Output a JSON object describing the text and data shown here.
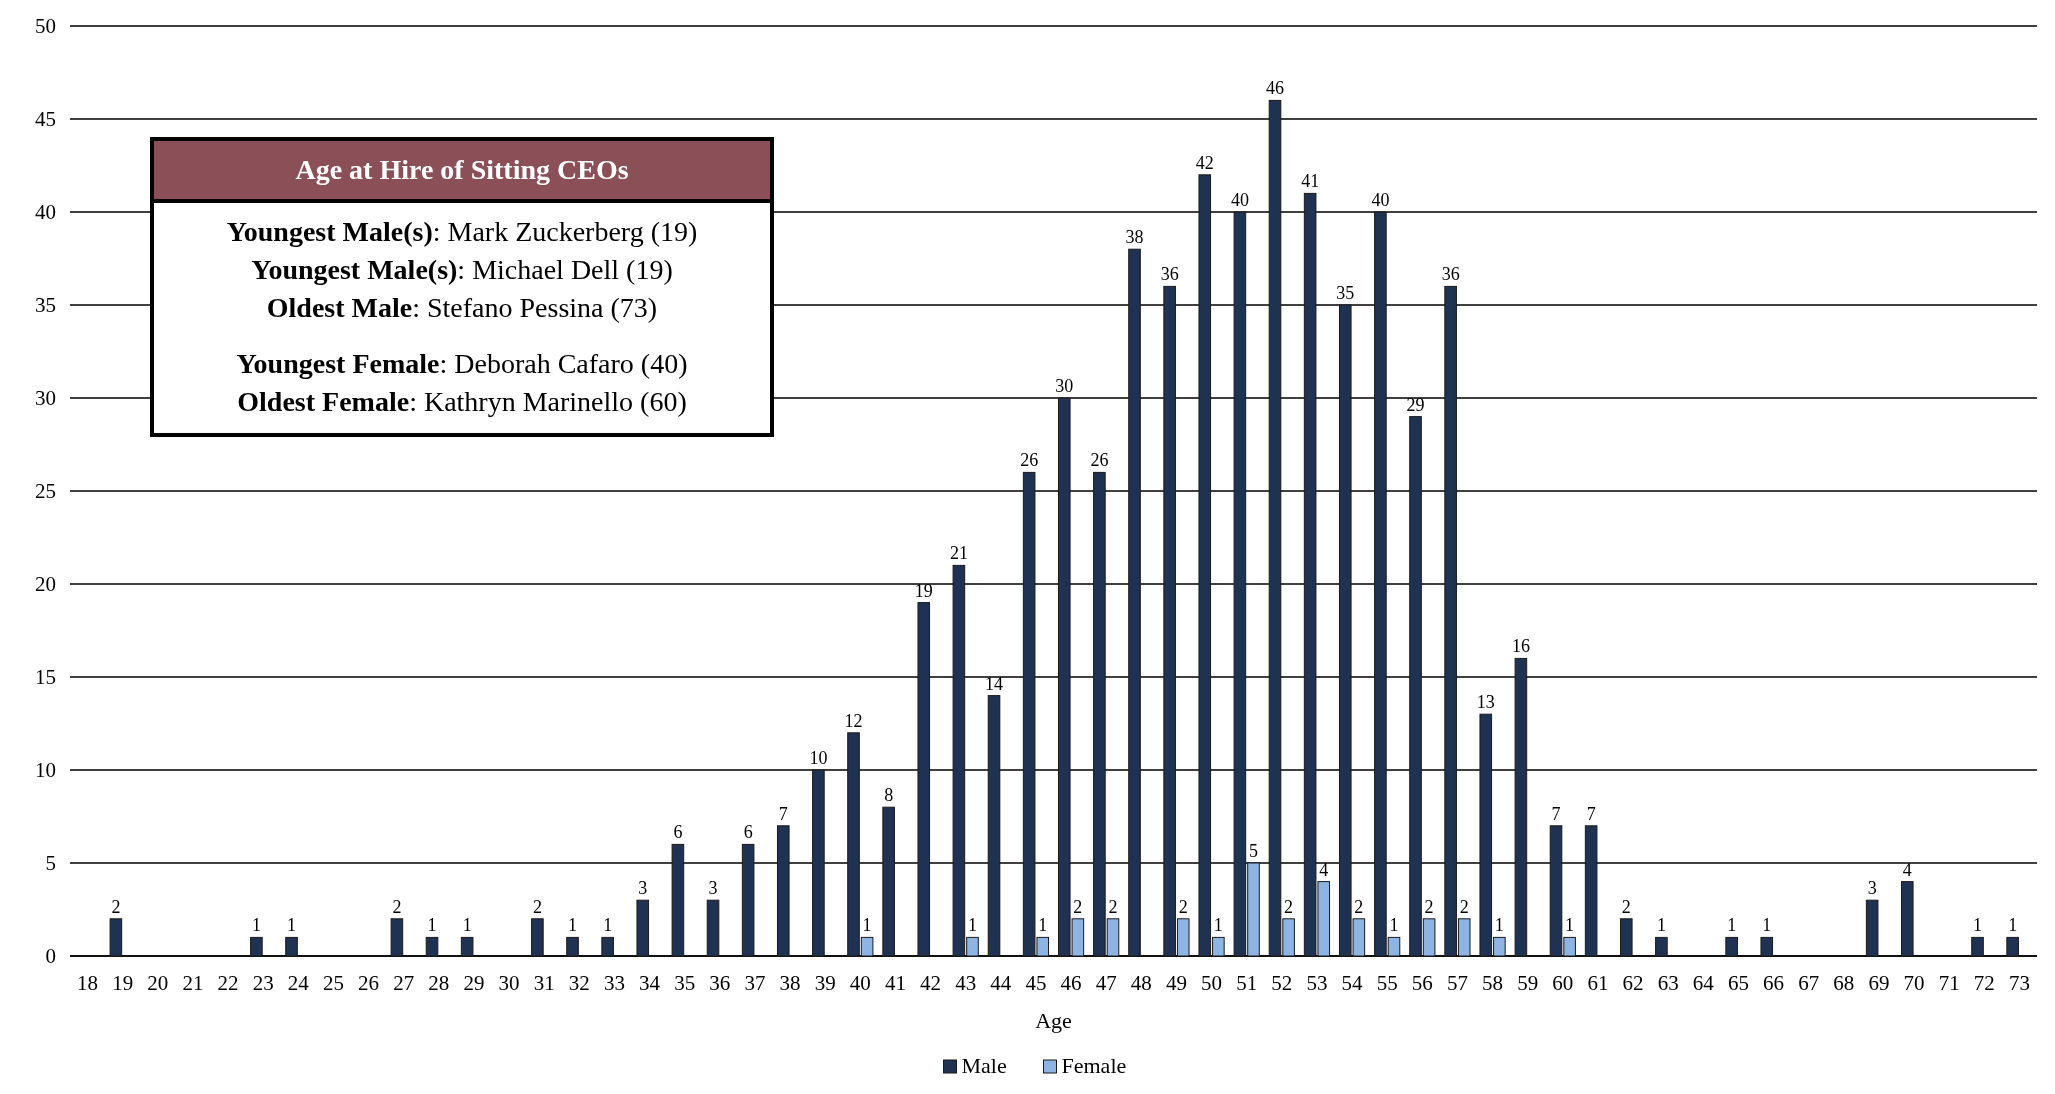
{
  "chart_data": {
    "type": "bar",
    "title": "Age at Hire of Sitting CEOs",
    "xlabel": "Age",
    "categories": [
      "18",
      "19",
      "20",
      "21",
      "22",
      "23",
      "24",
      "25",
      "26",
      "27",
      "28",
      "29",
      "30",
      "31",
      "32",
      "33",
      "34",
      "35",
      "36",
      "37",
      "38",
      "39",
      "40",
      "41",
      "42",
      "43",
      "44",
      "45",
      "46",
      "47",
      "48",
      "49",
      "50",
      "51",
      "52",
      "53",
      "54",
      "55",
      "56",
      "57",
      "58",
      "59",
      "60",
      "61",
      "62",
      "63",
      "64",
      "65",
      "66",
      "67",
      "68",
      "69",
      "70",
      "71",
      "72",
      "73"
    ],
    "series": [
      {
        "name": "Male",
        "color": "#1f3251",
        "values": [
          null,
          2,
          null,
          null,
          null,
          1,
          1,
          null,
          null,
          2,
          1,
          1,
          null,
          2,
          1,
          1,
          3,
          6,
          3,
          6,
          7,
          10,
          12,
          8,
          19,
          21,
          14,
          26,
          30,
          26,
          38,
          36,
          42,
          40,
          46,
          41,
          35,
          40,
          29,
          36,
          13,
          16,
          7,
          7,
          2,
          1,
          null,
          1,
          1,
          null,
          null,
          3,
          4,
          null,
          1,
          1
        ]
      },
      {
        "name": "Female",
        "color": "#8db4e2",
        "values": [
          null,
          null,
          null,
          null,
          null,
          null,
          null,
          null,
          null,
          null,
          null,
          null,
          null,
          null,
          null,
          null,
          null,
          null,
          null,
          null,
          null,
          null,
          1,
          null,
          null,
          1,
          null,
          1,
          2,
          2,
          null,
          2,
          1,
          5,
          2,
          4,
          2,
          1,
          2,
          2,
          1,
          null,
          1,
          null,
          null,
          null,
          null,
          null,
          null,
          null,
          null,
          null,
          null,
          null,
          null,
          null
        ]
      }
    ],
    "ylim": [
      0,
      50
    ],
    "yticks": [
      0,
      5,
      10,
      15,
      20,
      25,
      30,
      35,
      40,
      45,
      50
    ],
    "grid": "y",
    "legend": "bottom",
    "data_labels": true,
    "annotations": [
      "Youngest Male(s): Mark Zuckerberg (19)",
      "Youngest Male(s): Michael Dell (19)",
      "Oldest Male: Stefano Pessina (73)",
      "Youngest Female: Deborah Cafaro (40)",
      "Oldest Female: Kathryn Marinello (60)"
    ]
  }
}
